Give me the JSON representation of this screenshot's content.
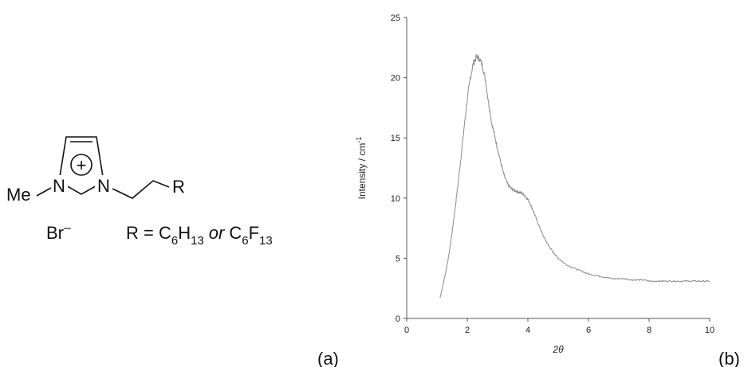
{
  "panel_a": {
    "label": "(a)",
    "methyl_label": "Me",
    "nitrogen_label": "N",
    "charge_symbol": "+",
    "r_group_label": "R",
    "counterion": "Br",
    "counterion_charge": "–",
    "formula": {
      "prefix": "R = C",
      "h_sub_c": "6",
      "h_element": "H",
      "h_sub_h": "13",
      "or_word": "or",
      "f_element_c": "C",
      "f_sub_c": "6",
      "f_element": "F",
      "f_sub_f": "13"
    }
  },
  "panel_b": {
    "label": "(b)"
  },
  "chart_data": {
    "type": "line",
    "title": "",
    "xlabel": "2θ",
    "ylabel": "Intensity / cm",
    "ylabel_superscript": "-1",
    "xlim": [
      0,
      10
    ],
    "ylim": [
      0,
      25
    ],
    "x_ticks": [
      0,
      2,
      4,
      6,
      8,
      10
    ],
    "y_ticks": [
      0,
      5,
      10,
      15,
      20,
      25
    ],
    "grid": false,
    "series_color": "#8a8a8a",
    "series": [
      {
        "x": [
          1.1,
          1.2,
          1.3,
          1.4,
          1.5,
          1.6,
          1.7,
          1.8,
          1.9,
          2.0,
          2.1,
          2.2,
          2.3,
          2.4,
          2.5,
          2.6,
          2.7,
          2.8,
          2.9,
          3.0,
          3.1,
          3.2,
          3.3,
          3.4,
          3.5,
          3.6,
          3.7,
          3.8,
          3.9,
          4.0,
          4.1,
          4.2,
          4.3,
          4.4,
          4.5,
          4.6,
          4.7,
          4.8,
          4.9,
          5.0,
          5.2,
          5.4,
          5.6,
          5.8,
          6.0,
          6.2,
          6.4,
          6.6,
          6.8,
          7.0,
          7.2,
          7.4,
          7.6,
          7.8,
          8.0,
          8.2,
          8.4,
          8.6,
          8.8,
          9.0,
          9.2,
          9.4,
          9.6,
          9.8,
          10.0
        ],
        "values": [
          1.7,
          2.8,
          4.0,
          5.4,
          7.2,
          9.2,
          11.3,
          13.6,
          16.0,
          18.2,
          20.0,
          21.2,
          21.7,
          21.6,
          21.0,
          19.8,
          18.0,
          16.3,
          15.2,
          14.1,
          13.0,
          12.0,
          11.3,
          10.9,
          10.7,
          10.6,
          10.5,
          10.4,
          10.2,
          9.9,
          9.4,
          8.8,
          8.1,
          7.5,
          6.9,
          6.4,
          6.0,
          5.6,
          5.3,
          5.0,
          4.6,
          4.3,
          4.1,
          3.9,
          3.7,
          3.6,
          3.5,
          3.4,
          3.3,
          3.3,
          3.3,
          3.2,
          3.2,
          3.2,
          3.1,
          3.1,
          3.1,
          3.1,
          3.1,
          3.1,
          3.1,
          3.1,
          3.1,
          3.1,
          3.1
        ]
      }
    ]
  }
}
